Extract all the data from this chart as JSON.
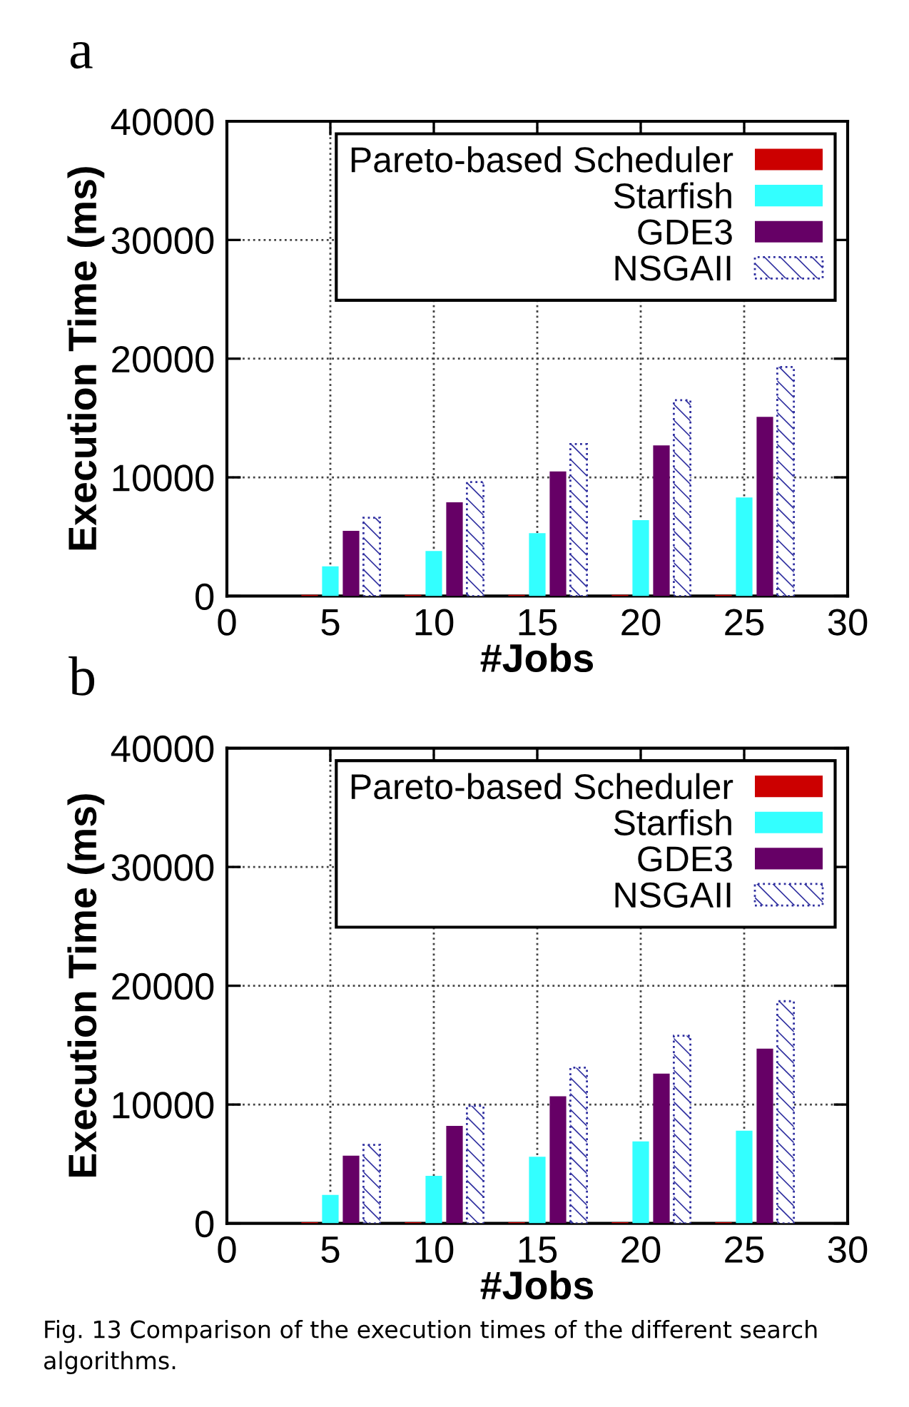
{
  "chart_data": [
    {
      "type": "bar",
      "title": "a",
      "xlabel": "#Jobs",
      "ylabel": "Execution Time (ms)",
      "xlim": [
        0,
        30
      ],
      "xticks": [
        0,
        5,
        10,
        15,
        20,
        25,
        30
      ],
      "ylim": [
        0,
        40000
      ],
      "yticks": [
        0,
        10000,
        20000,
        30000,
        40000
      ],
      "grid": true,
      "legend": "top right",
      "series": [
        {
          "name": "Pareto-based Scheduler",
          "color": "#cc0000",
          "x": [
            4,
            9,
            14,
            19,
            24
          ],
          "values": [
            100,
            100,
            100,
            100,
            100
          ]
        },
        {
          "name": "Starfish",
          "color": "#33ffff",
          "x": [
            5,
            10,
            15,
            20,
            25
          ],
          "values": [
            2500,
            3800,
            5300,
            6400,
            8300
          ]
        },
        {
          "name": "GDE3",
          "color": "#660066",
          "x": [
            6,
            11,
            16,
            21,
            26
          ],
          "values": [
            5500,
            7900,
            10500,
            12700,
            15100
          ]
        },
        {
          "name": "NSGAII",
          "color": "#3030a0",
          "line_style": "dotted",
          "x": [
            7,
            12,
            17,
            22,
            27
          ],
          "values": [
            6600,
            9600,
            12800,
            16500,
            19300
          ]
        }
      ]
    },
    {
      "type": "bar",
      "title": "b",
      "xlabel": "#Jobs",
      "ylabel": "Execution Time (ms)",
      "xlim": [
        0,
        30
      ],
      "xticks": [
        0,
        5,
        10,
        15,
        20,
        25,
        30
      ],
      "ylim": [
        0,
        40000
      ],
      "yticks": [
        0,
        10000,
        20000,
        30000,
        40000
      ],
      "grid": true,
      "legend": "top right",
      "series": [
        {
          "name": "Pareto-based Scheduler",
          "color": "#cc0000",
          "x": [
            4,
            9,
            14,
            19,
            24
          ],
          "values": [
            100,
            100,
            100,
            100,
            100
          ]
        },
        {
          "name": "Starfish",
          "color": "#33ffff",
          "x": [
            5,
            10,
            15,
            20,
            25
          ],
          "values": [
            2400,
            4000,
            5600,
            6900,
            7800
          ]
        },
        {
          "name": "GDE3",
          "color": "#660066",
          "x": [
            6,
            11,
            16,
            21,
            26
          ],
          "values": [
            5700,
            8200,
            10700,
            12600,
            14700
          ]
        },
        {
          "name": "NSGAII",
          "color": "#3030a0",
          "line_style": "dotted",
          "x": [
            7,
            12,
            17,
            22,
            27
          ],
          "values": [
            6600,
            9900,
            13100,
            15800,
            18700
          ]
        }
      ],
      "annotations": [
        "Fig. 13 Comparison of the execution times of the different search algorithms."
      ]
    }
  ]
}
